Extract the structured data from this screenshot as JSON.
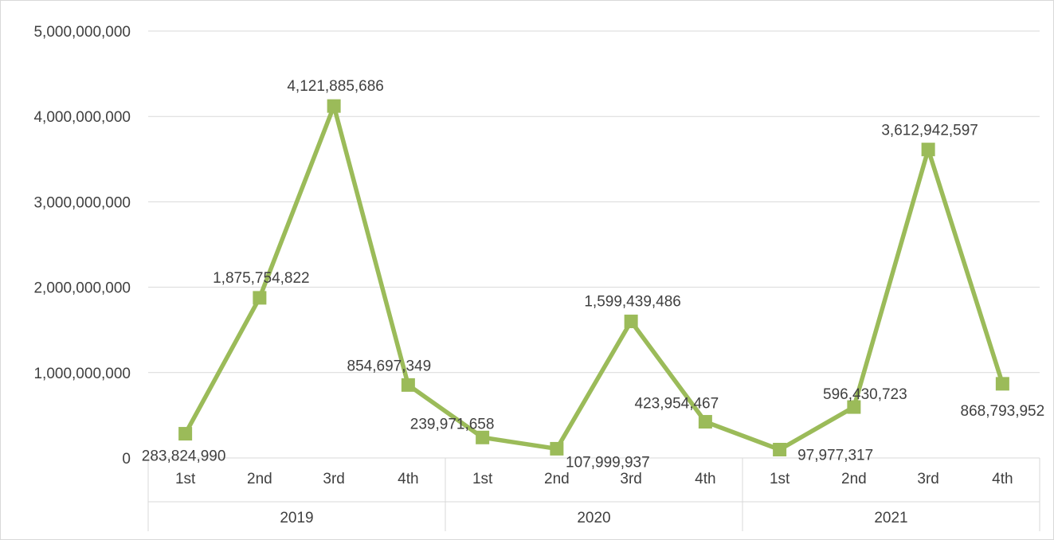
{
  "chart_data": {
    "type": "line",
    "title": "",
    "xlabel": "",
    "ylabel": "",
    "ylim": [
      0,
      5000000000
    ],
    "y_ticks": [
      0,
      1000000000,
      2000000000,
      3000000000,
      4000000000,
      5000000000
    ],
    "y_tick_labels": [
      "0",
      "1,000,000,000",
      "2,000,000,000",
      "3,000,000,000",
      "4,000,000,000",
      "5,000,000,000"
    ],
    "grid": true,
    "legend": "none",
    "groups": [
      {
        "label": "2019",
        "categories": [
          "1st",
          "2nd",
          "3rd",
          "4th"
        ]
      },
      {
        "label": "2020",
        "categories": [
          "1st",
          "2nd",
          "3rd",
          "4th"
        ]
      },
      {
        "label": "2021",
        "categories": [
          "1st",
          "2nd",
          "3rd",
          "4th"
        ]
      }
    ],
    "series": [
      {
        "values": [
          283824990,
          1875754822,
          4121885686,
          854697349,
          239971658,
          107999937,
          1599439486,
          423954467,
          97977317,
          596430723,
          3612942597,
          868793952
        ],
        "data_labels": [
          "283,824,990",
          "1,875,754,822",
          "4,121,885,686",
          "854,697,349",
          "239,971,658",
          "107,999,937",
          "1,599,439,486",
          "423,954,467",
          "97,977,317",
          "596,430,723",
          "3,612,942,597",
          "868,793,952"
        ],
        "color": "#9BBB59",
        "marker": "square"
      }
    ]
  },
  "colors": {
    "series": "#9BBB59",
    "grid": "#D9D9D9",
    "text": "#404040",
    "frame": "#D9D9D9"
  }
}
